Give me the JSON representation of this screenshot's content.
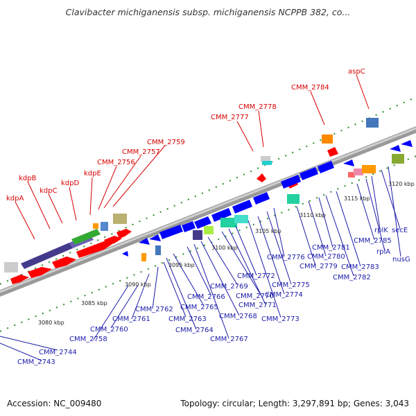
{
  "title": "Clavibacter michiganensis subsp. michiganensis NCPPB 382, co...",
  "footer": {
    "accession": "Accession: NC_009480",
    "summary": "Topology: circular; Length: 3,297,891 bp; Genes: 3,043"
  },
  "colors": {
    "forward_genes": "#ff0000",
    "reverse_genes": "#0000ff",
    "top_labels": "#d60000",
    "bottom_labels": "#1a1aa8",
    "backbone": "#8c8c8c"
  },
  "kbp_ticks": [
    "3080 kbp",
    "3085 kbp",
    "3090 kbp",
    "3095 kbp",
    "3100 kbp",
    "3105 kbp",
    "3110 kbp",
    "3115 kbp",
    "3120 kbp"
  ],
  "top_labels": [
    "kdpA",
    "kdpB",
    "kdpC",
    "kdpD",
    "kdpE",
    "CMM_2756",
    "CMM_2757",
    "CMM_2759",
    "CMM_2777",
    "CMM_2778",
    "CMM_2784",
    "aspC"
  ],
  "bottom_labels": [
    "CMM_2743",
    "CMM_2744",
    "CMM_2758",
    "CMM_2760",
    "CMM_2761",
    "CMM_2762",
    "CMM_2763",
    "CMM_2764",
    "CMM_2765",
    "CMM_2766",
    "CMM_2767",
    "CMM_2768",
    "CMM_2769",
    "CMM_2770",
    "CMM_2771",
    "CMM_2772",
    "CMM_2773",
    "CMM_2774",
    "CMM_2775",
    "CMM_2776",
    "CMM_2779",
    "CMM_2780",
    "CMM_2781",
    "CMM_2782",
    "CMM_2783",
    "CMM_2785",
    "rplA",
    "rplK",
    "secE",
    "nusG"
  ]
}
